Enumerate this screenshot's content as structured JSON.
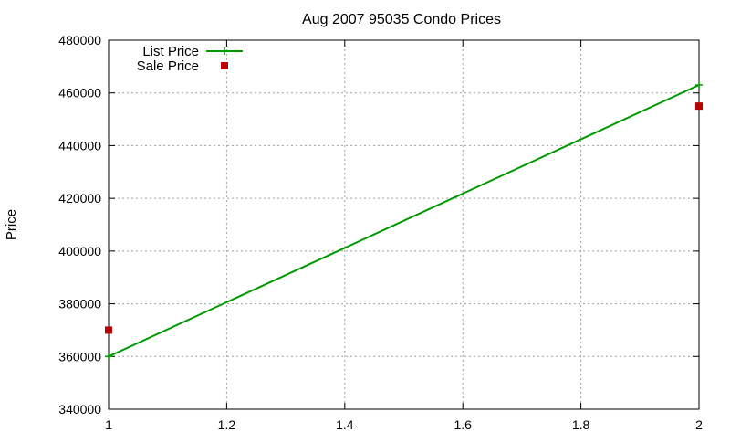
{
  "chart_data": {
    "type": "line",
    "title": "Aug 2007 95035 Condo Prices",
    "xlabel": "",
    "ylabel": "Price",
    "xlim": [
      1,
      2
    ],
    "ylim": [
      340000,
      480000
    ],
    "x_ticks": [
      "1",
      "1.2",
      "1.4",
      "1.6",
      "1.8",
      "2"
    ],
    "y_ticks": [
      "340000",
      "360000",
      "380000",
      "400000",
      "420000",
      "440000",
      "460000",
      "480000"
    ],
    "grid": true,
    "legend_position": "top-left",
    "series": [
      {
        "name": "List Price",
        "style": "line-with-plus-markers",
        "color": "#009900",
        "points": [
          {
            "x": 1,
            "y": 360000
          },
          {
            "x": 2,
            "y": 463000
          }
        ]
      },
      {
        "name": "Sale Price",
        "style": "square-markers",
        "color": "#bb0000",
        "points": [
          {
            "x": 1,
            "y": 370000
          },
          {
            "x": 2,
            "y": 455000
          }
        ]
      }
    ]
  }
}
